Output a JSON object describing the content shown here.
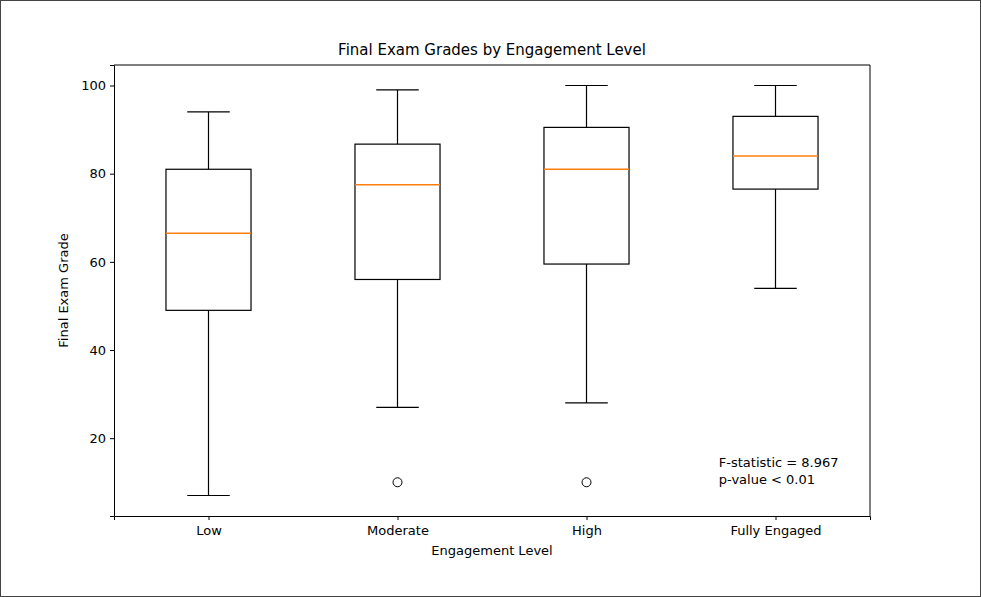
{
  "chart_data": {
    "type": "box",
    "title": "Final Exam Grades by Engagement Level",
    "x_label": "Engagement Level",
    "y_label": "Final Exam Grade",
    "categories": [
      "Low",
      "Moderate",
      "High",
      "Fully Engaged"
    ],
    "boxes": [
      {
        "whislo": 7,
        "q1": 49,
        "med": 66.5,
        "q3": 81,
        "whishi": 94,
        "fliers": []
      },
      {
        "whislo": 27,
        "q1": 56,
        "med": 77.5,
        "q3": 86.7,
        "whishi": 99,
        "fliers": [
          10
        ]
      },
      {
        "whislo": 28,
        "q1": 59.5,
        "med": 81,
        "q3": 90.5,
        "whishi": 100,
        "fliers": [
          10
        ]
      },
      {
        "whislo": 54,
        "q1": 76.5,
        "med": 84,
        "q3": 93,
        "whishi": 100,
        "fliers": []
      }
    ],
    "color": "#ff7f0e",
    "ylim": [
      2.35,
      104.65
    ],
    "yticks": [
      20,
      40,
      60,
      80,
      100
    ],
    "grid": false,
    "annotations": [
      "F-statistic = 8.967",
      "p-value < 0.01"
    ]
  }
}
